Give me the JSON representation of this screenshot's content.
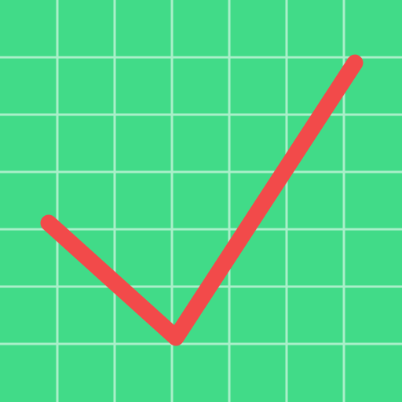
{
  "icon": {
    "name": "checkmark-on-grid-icon",
    "colors": {
      "background": "#41db88",
      "grid": "#a9efc9",
      "check": "#f24a4a"
    }
  }
}
